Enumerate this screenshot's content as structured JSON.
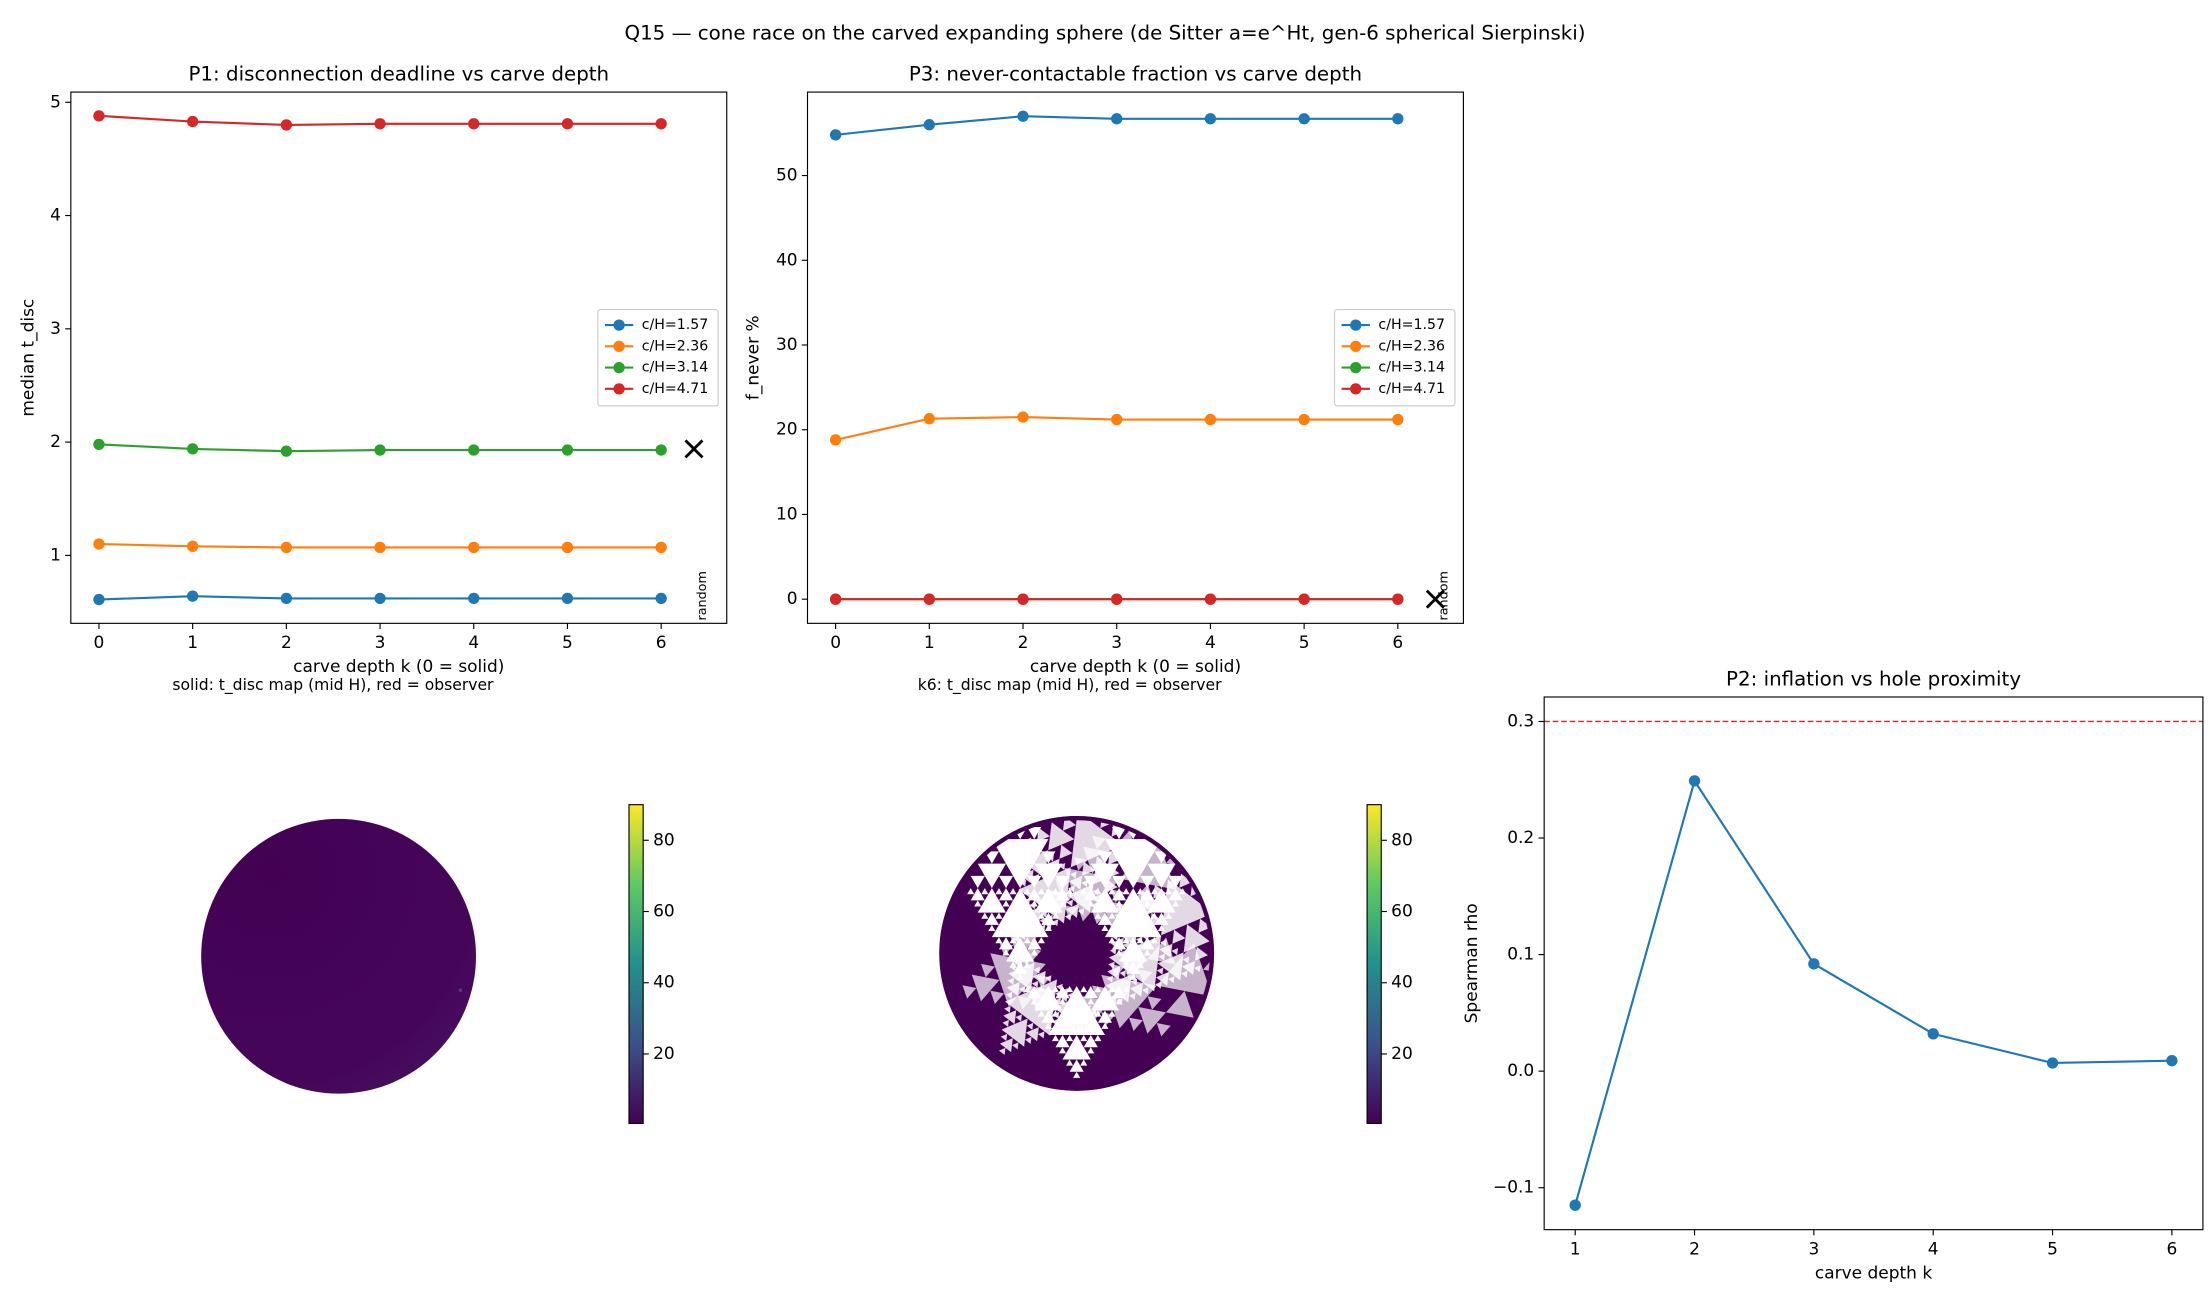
{
  "title": "Q15 — cone race on the carved expanding sphere (de Sitter a=e^Ht, gen-6 spherical Sierpinski)",
  "chart_data": [
    {
      "type": "line",
      "title": "P1: disconnection deadline vs carve depth",
      "xlabel": "carve depth k (0 = solid)",
      "ylabel": "median t_disc",
      "x": [
        0,
        1,
        2,
        3,
        4,
        5,
        6
      ],
      "xlim": [
        -0.3,
        6.7
      ],
      "ylim": [
        0.4,
        5.09
      ],
      "xticks": [
        0,
        1,
        2,
        3,
        4,
        5,
        6
      ],
      "yticks": [
        1,
        2,
        3,
        4,
        5
      ],
      "legend": "center right",
      "series": [
        {
          "name": "c/H=1.57",
          "color": "#1f77b4",
          "values": [
            0.61,
            0.64,
            0.62,
            0.62,
            0.62,
            0.62,
            0.62
          ]
        },
        {
          "name": "c/H=2.36",
          "color": "#ff7f0e",
          "values": [
            1.1,
            1.08,
            1.07,
            1.07,
            1.07,
            1.07,
            1.07
          ]
        },
        {
          "name": "c/H=3.14",
          "color": "#2ca02c",
          "values": [
            1.98,
            1.94,
            1.92,
            1.93,
            1.93,
            1.93,
            1.93
          ]
        },
        {
          "name": "c/H=4.71",
          "color": "#d62728",
          "values": [
            4.88,
            4.83,
            4.8,
            4.81,
            4.81,
            4.81,
            4.81
          ]
        }
      ],
      "markers": [
        {
          "x": 6.35,
          "y": 1.94,
          "label": "random",
          "color": "#000000"
        }
      ]
    },
    {
      "type": "line",
      "title": "P3: never-contactable fraction vs carve depth",
      "xlabel": "carve depth k (0 = solid)",
      "ylabel": "f_never %",
      "x": [
        0,
        1,
        2,
        3,
        4,
        5,
        6
      ],
      "xlim": [
        -0.3,
        6.7
      ],
      "ylim": [
        -2.85,
        59.85
      ],
      "xticks": [
        0,
        1,
        2,
        3,
        4,
        5,
        6
      ],
      "yticks": [
        0,
        10,
        20,
        30,
        40,
        50
      ],
      "legend": "center right",
      "series": [
        {
          "name": "c/H=1.57",
          "color": "#1f77b4",
          "values": [
            54.8,
            56.0,
            57.0,
            56.7,
            56.7,
            56.7,
            56.7
          ]
        },
        {
          "name": "c/H=2.36",
          "color": "#ff7f0e",
          "values": [
            18.8,
            21.3,
            21.5,
            21.2,
            21.2,
            21.2,
            21.2
          ]
        },
        {
          "name": "c/H=3.14",
          "color": "#2ca02c",
          "values": [
            0,
            0,
            0,
            0,
            0,
            0,
            0
          ]
        },
        {
          "name": "c/H=4.71",
          "color": "#d62728",
          "values": [
            0,
            0,
            0,
            0,
            0,
            0,
            0
          ]
        }
      ],
      "markers": [
        {
          "x": 6.4,
          "y": 0,
          "label": "random",
          "color": "#000000"
        }
      ]
    },
    {
      "type": "image",
      "title": "solid: t_disc map (mid H), red = observer",
      "cmap": "viridis",
      "clim": [
        0.5,
        90
      ],
      "colorbar_ticks": [
        20,
        40,
        60,
        80
      ]
    },
    {
      "type": "image",
      "title": "k6: t_disc map (mid H), red = observer",
      "cmap": "viridis",
      "clim": [
        0.5,
        90
      ],
      "colorbar_ticks": [
        20,
        40,
        60,
        80
      ]
    },
    {
      "type": "line",
      "title": "P2: inflation vs hole proximity",
      "xlabel": "carve depth k",
      "ylabel": "Spearman rho",
      "x": [
        1,
        2,
        3,
        4,
        5,
        6
      ],
      "xlim": [
        0.74,
        6.26
      ],
      "ylim": [
        -0.136,
        0.321
      ],
      "xticks": [
        1,
        2,
        3,
        4,
        5,
        6
      ],
      "yticks": [
        {
          "value": -0.1,
          "label": "−0.1"
        },
        {
          "value": 0,
          "label": "0.0"
        },
        0.1,
        0.2,
        0.3
      ],
      "series": [
        {
          "color": "#1f77b4",
          "values": [
            -0.115,
            0.249,
            0.092,
            0.032,
            0.007,
            0.009
          ]
        }
      ],
      "hlines": [
        {
          "y": 0.3,
          "color": "#d62728",
          "style": "dashed"
        }
      ]
    }
  ]
}
